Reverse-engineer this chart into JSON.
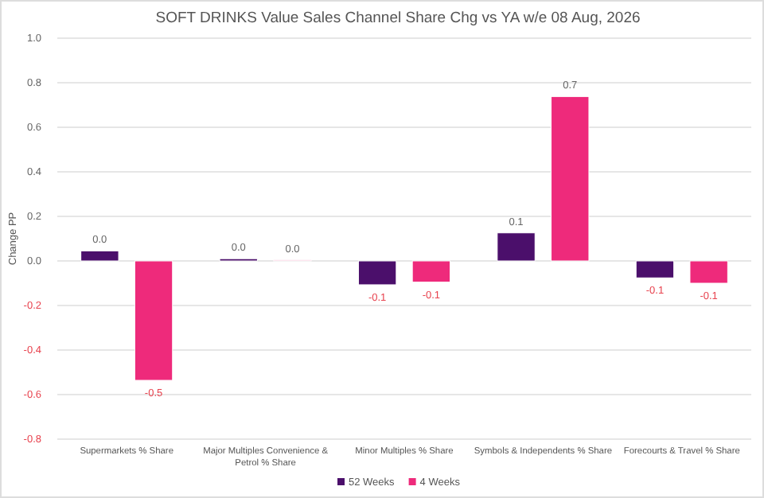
{
  "chart_data": {
    "type": "bar",
    "title": "SOFT DRINKS Value Sales Channel Share Chg vs YA w/e 08 Aug, 2026",
    "ylabel": "Change PP",
    "categories": [
      "Supermarkets % Share",
      "Major Multiples Convenience & Petrol % Share",
      "Minor Multiples % Share",
      "Symbols & Independents % Share",
      "Forecourts & Travel % Share"
    ],
    "series": [
      {
        "name": "52 Weeks",
        "color": "#4b0f6b",
        "values": [
          0.045,
          0.01,
          -0.107,
          0.126,
          -0.076
        ],
        "value_labels": [
          "0.0",
          "0.0",
          "-0.1",
          "0.1",
          "-0.1"
        ]
      },
      {
        "name": "4 Weeks",
        "color": "#ee2a7b",
        "values": [
          -0.536,
          0.004,
          -0.095,
          0.738,
          -0.1
        ],
        "value_labels": [
          "-0.5",
          "0.0",
          "-0.1",
          "0.7",
          "-0.1"
        ]
      }
    ],
    "ylim": [
      -0.8,
      1.0
    ],
    "yticks": [
      {
        "value": -0.8,
        "label": "-0.8"
      },
      {
        "value": -0.6,
        "label": "-0.6"
      },
      {
        "value": -0.4,
        "label": "-0.4"
      },
      {
        "value": -0.2,
        "label": "-0.2"
      },
      {
        "value": 0,
        "label": "0.0"
      },
      {
        "value": 0.2,
        "label": "0.2"
      },
      {
        "value": 0.4,
        "label": "0.4"
      },
      {
        "value": 0.6,
        "label": "0.6"
      },
      {
        "value": 0.8,
        "label": "0.8"
      },
      {
        "value": 1,
        "label": "1.0"
      }
    ],
    "grid": "y",
    "legend": "bottom"
  }
}
